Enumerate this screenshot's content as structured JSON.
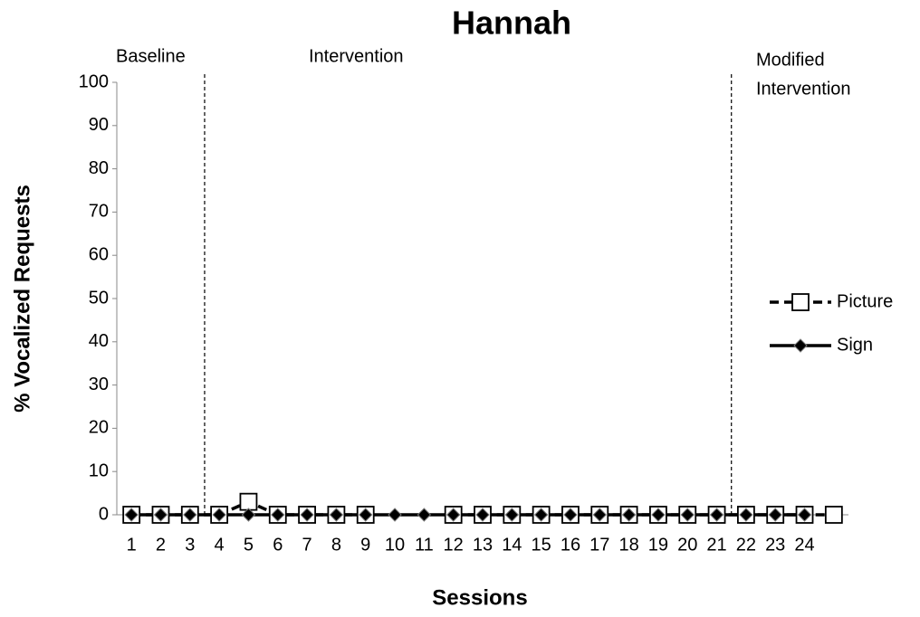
{
  "chart_data": {
    "type": "line",
    "title": "Hannah",
    "x_label": "Sessions",
    "y_label": "% Vocalized Requests",
    "categories": [
      "1",
      "2",
      "3",
      "4",
      "5",
      "6",
      "7",
      "8",
      "9",
      "10",
      "11",
      "12",
      "13",
      "14",
      "15",
      "16",
      "17",
      "18",
      "19",
      "20",
      "21",
      "22",
      "23",
      "24",
      null
    ],
    "series": [
      {
        "name": "Picture",
        "color": "#000000",
        "dash": true,
        "marker": "square",
        "values": [
          0,
          0,
          0,
          0,
          3,
          0,
          0,
          0,
          0,
          null,
          null,
          0,
          0,
          0,
          0,
          0,
          0,
          0,
          0,
          0,
          0,
          0,
          0,
          0,
          0
        ]
      },
      {
        "name": "Sign",
        "color": "#000000",
        "dash": false,
        "marker": "diamond",
        "values": [
          0,
          0,
          0,
          0,
          0,
          0,
          0,
          0,
          0,
          0,
          0,
          0,
          0,
          0,
          0,
          0,
          0,
          0,
          0,
          0,
          0,
          0,
          0,
          0,
          null
        ]
      }
    ],
    "annotations": [
      [
        "Baseline"
      ],
      [
        "Intervention"
      ],
      [
        "Modified",
        "Intervention"
      ]
    ],
    "ylim": [
      0,
      100
    ],
    "yticks": [
      0,
      10,
      20,
      30,
      40,
      50,
      60,
      70,
      80,
      90,
      100
    ],
    "grid": false,
    "legend": "right"
  }
}
